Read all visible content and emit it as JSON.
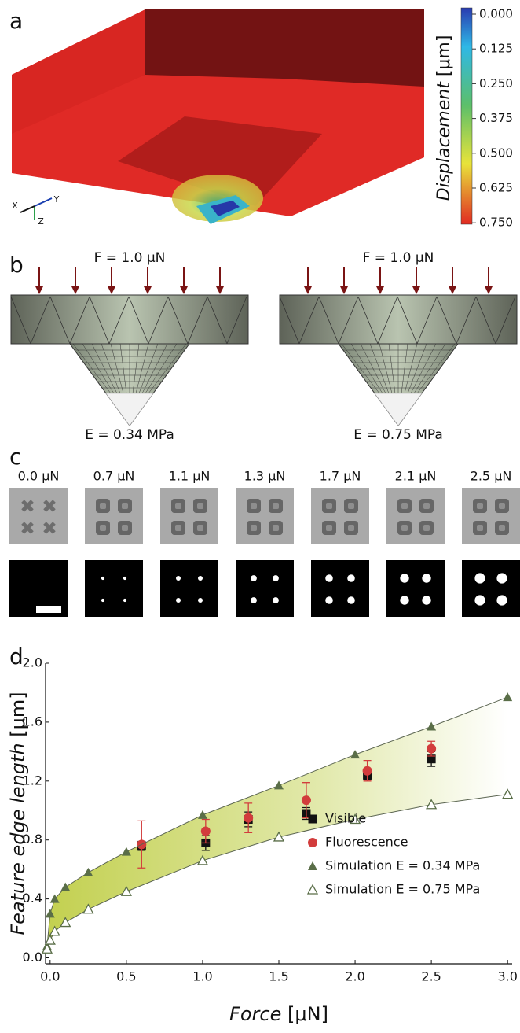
{
  "panel_labels": [
    "a",
    "b",
    "c",
    "d"
  ],
  "panel_a": {
    "colorbar_label": {
      "name": "Displacement",
      "unit": "[μm]"
    },
    "colorbar_ticks": [
      "0.000",
      "0.125",
      "0.250",
      "0.375",
      "0.500",
      "0.625",
      "0.750"
    ],
    "axes_labels": [
      "X",
      "Y",
      "Z"
    ]
  },
  "panel_b": {
    "force": "F = 1.0 μN",
    "moduli": [
      "E = 0.34 MPa",
      "E = 0.75 MPa"
    ]
  },
  "panel_c": {
    "forces": [
      "0.0 μN",
      "0.7 μN",
      "1.1 μN",
      "1.3 μN",
      "1.7 μN",
      "2.1 μN",
      "2.5 μN"
    ]
  },
  "chart_data": {
    "type": "scatter",
    "x_label": {
      "name": "Force",
      "unit": "[μN]"
    },
    "y_label": {
      "name": "Feature edge length",
      "unit": "[μm]"
    },
    "xlim": [
      -0.03,
      3.03
    ],
    "ylim": [
      -0.04,
      2.0
    ],
    "xticks": [
      {
        "value": 0,
        "label": "0.0"
      },
      0.5,
      {
        "value": 1,
        "label": "1.0"
      },
      1.5,
      {
        "value": 2,
        "label": "2.0"
      },
      2.5,
      {
        "value": 3,
        "label": "3.0"
      }
    ],
    "yticks": [
      {
        "value": 0,
        "label": "0.0"
      },
      0.4,
      0.8,
      1.2,
      1.6,
      {
        "value": 2,
        "label": "2.0"
      }
    ],
    "legend": "lower right",
    "series": [
      {
        "name": "Visible",
        "color": "#111111",
        "marker": "square",
        "x": [
          0.6,
          1.02,
          1.3,
          1.68,
          2.08,
          2.5
        ],
        "values": [
          0.76,
          0.78,
          0.94,
          0.98,
          1.24,
          1.35
        ],
        "errors": [
          0.03,
          0.05,
          0.05,
          0.04,
          0.03,
          0.05
        ]
      },
      {
        "name": "Fluorescence",
        "color": "#d23c3c",
        "marker": "circle",
        "x": [
          0.6,
          1.02,
          1.3,
          1.68,
          2.08,
          2.5
        ],
        "values": [
          0.77,
          0.86,
          0.95,
          1.07,
          1.27,
          1.42
        ],
        "errors": [
          0.16,
          0.08,
          0.1,
          0.12,
          0.07,
          0.05
        ]
      },
      {
        "name": "Simulation E = 0.34 MPa",
        "color": "#5a6e48",
        "marker": "triangle",
        "x": [
          -0.02,
          0.0,
          0.03,
          0.1,
          0.25,
          0.5,
          1.0,
          1.5,
          2.0,
          2.5,
          3.0
        ],
        "values": [
          0.08,
          0.3,
          0.4,
          0.48,
          0.58,
          0.72,
          0.97,
          1.17,
          1.38,
          1.57,
          1.77
        ]
      },
      {
        "name": "Simulation E = 0.75 MPa",
        "color": "#5a6e48",
        "marker": "open-triangle",
        "x": [
          -0.02,
          0.0,
          0.03,
          0.1,
          0.25,
          0.5,
          1.0,
          1.5,
          2.0,
          2.5,
          3.0
        ],
        "values": [
          0.06,
          0.12,
          0.18,
          0.24,
          0.33,
          0.45,
          0.66,
          0.82,
          0.94,
          1.04,
          1.11
        ]
      }
    ]
  }
}
